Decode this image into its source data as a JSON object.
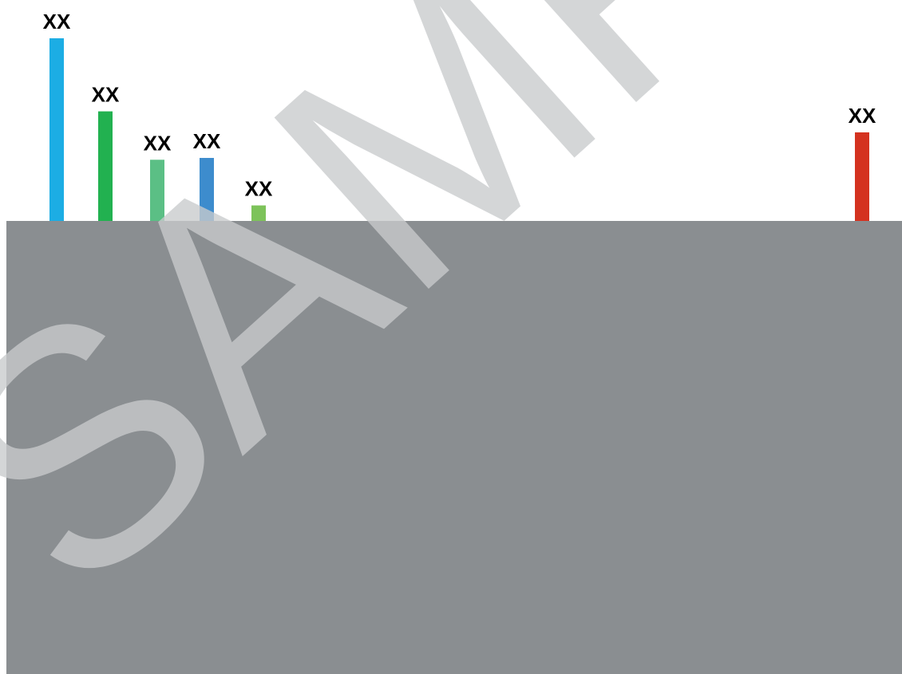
{
  "chart_data": {
    "type": "bar",
    "categories": [
      "",
      "",
      "",
      "",
      "",
      ""
    ],
    "values": [
      100,
      60,
      33.5,
      34.5,
      8.5,
      48.5
    ],
    "data_labels": [
      "XX",
      "XX",
      "XX",
      "XX",
      "XX",
      "XX"
    ],
    "bar_colors": [
      "#1CADE4",
      "#22B150",
      "#5BBF85",
      "#3D8CCD",
      "#7DC35A",
      "#D4321F"
    ],
    "ylim": [
      0,
      100
    ],
    "grid": false,
    "legend": "none"
  },
  "overlay": {
    "panel_color": "#8A8E91",
    "watermark": {
      "text": "SAMPLE",
      "color": "#C9CBCD"
    }
  }
}
